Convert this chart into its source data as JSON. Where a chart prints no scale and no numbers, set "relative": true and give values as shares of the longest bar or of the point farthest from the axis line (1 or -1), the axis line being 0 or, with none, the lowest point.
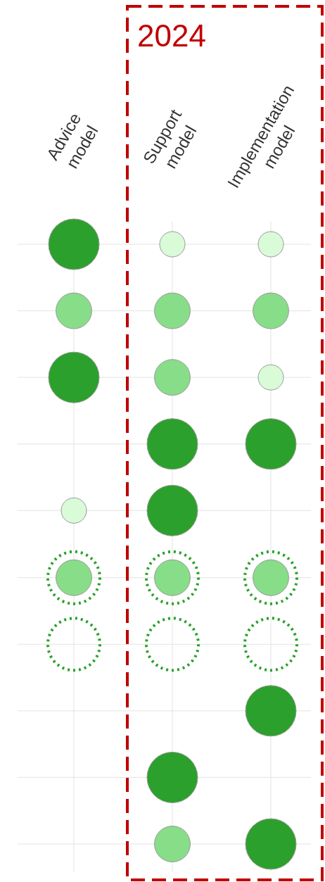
{
  "chart_data": {
    "type": "bubble",
    "categories": [
      "Advice\nmodel",
      "Support\nmodel",
      "Implementation\nmodel"
    ],
    "tick_labels": "x",
    "grid": true,
    "marker": "circle",
    "relative": true,
    "annotations": [
      "2024"
    ],
    "series": [
      {
        "color": "#2ca02c",
        "x": [
          "Advice\nmodel",
          "Advice\nmodel",
          "Support\nmodel",
          "Support\nmodel",
          "Support\nmodel",
          "Implementation\nmodel",
          "Implementation\nmodel",
          "Implementation\nmodel"
        ],
        "values": [
          1,
          0.778,
          0.667,
          0.556,
          0.111,
          0.667,
          0.222,
          0
        ],
        "sizes": [
          1,
          1,
          1,
          1,
          1,
          1,
          1,
          1
        ]
      },
      {
        "color": "#88dd88",
        "x": [
          "Advice\nmodel",
          "Advice\nmodel",
          "Support\nmodel",
          "Support\nmodel",
          "Support\nmodel",
          "Support\nmodel",
          "Implementation\nmodel",
          "Implementation\nmodel"
        ],
        "values": [
          0.889,
          0.444,
          0.889,
          0.778,
          0.444,
          0,
          0.889,
          0.444
        ],
        "sizes": [
          0.5,
          0.5,
          0.5,
          0.5,
          0.5,
          0.5,
          0.5,
          0.5
        ]
      },
      {
        "color": "#d9fbd8",
        "x": [
          "Advice\nmodel",
          "Support\nmodel",
          "Implementation\nmodel",
          "Implementation\nmodel"
        ],
        "values": [
          0.556,
          1,
          1,
          0.778
        ],
        "sizes": [
          0.25,
          0.25,
          0.25,
          0.25
        ]
      },
      {
        "color": "#2ba12b",
        "line_style": "dotted",
        "x": [
          "Advice\nmodel",
          "Advice\nmodel",
          "Support\nmodel",
          "Support\nmodel",
          "Implementation\nmodel",
          "Implementation\nmodel"
        ],
        "values": [
          0.444,
          0.333,
          0.444,
          0.333,
          0.444,
          0.333
        ],
        "sizes": [
          1,
          1,
          1,
          1,
          1,
          1
        ]
      }
    ]
  }
}
